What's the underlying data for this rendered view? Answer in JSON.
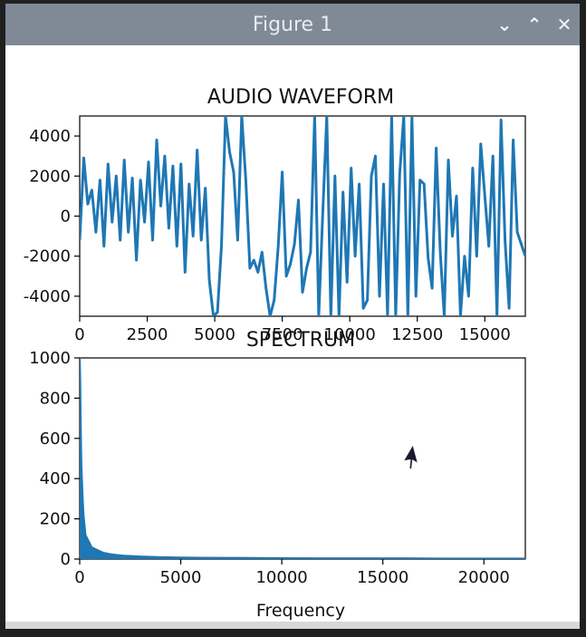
{
  "window": {
    "title": "Figure 1",
    "buttons": {
      "minimize": "⌄",
      "maximize": "⌃",
      "close": "✕"
    }
  },
  "chart_data": [
    {
      "type": "line",
      "title": "AUDIO WAVEFORM",
      "xlabel": "",
      "ylabel": "",
      "xlim": [
        0,
        16500
      ],
      "ylim": [
        -5000,
        5000
      ],
      "xticks": [
        "0",
        "2500",
        "5000",
        "7500",
        "10000",
        "12500",
        "15000"
      ],
      "yticks": [
        "4000",
        "2000",
        "0",
        "-2000",
        "-4000"
      ],
      "color": "#1f77b4",
      "x": [
        0,
        150,
        300,
        450,
        600,
        750,
        900,
        1050,
        1200,
        1350,
        1500,
        1650,
        1800,
        1950,
        2100,
        2250,
        2400,
        2550,
        2700,
        2850,
        3000,
        3150,
        3300,
        3450,
        3600,
        3750,
        3900,
        4050,
        4200,
        4350,
        4500,
        4650,
        4800,
        4950,
        5100,
        5250,
        5400,
        5550,
        5700,
        5850,
        6000,
        6150,
        6300,
        6450,
        6600,
        6750,
        6900,
        7050,
        7200,
        7350,
        7500,
        7650,
        7800,
        7950,
        8100,
        8250,
        8400,
        8550,
        8700,
        8850,
        9000,
        9150,
        9300,
        9450,
        9600,
        9750,
        9900,
        10050,
        10200,
        10350,
        10500,
        10650,
        10800,
        10950,
        11100,
        11250,
        11400,
        11550,
        11700,
        11850,
        12000,
        12150,
        12300,
        12450,
        12600,
        12750,
        12900,
        13050,
        13200,
        13350,
        13500,
        13650,
        13800,
        13950,
        14100,
        14250,
        14400,
        14550,
        14700,
        14850,
        15000,
        15150,
        15300,
        15450,
        15600,
        15750,
        15900,
        16050,
        16200,
        16350,
        16500
      ],
      "y": [
        -1200,
        2900,
        600,
        1300,
        -800,
        1800,
        -1500,
        2600,
        -300,
        2000,
        -1200,
        2800,
        -800,
        1900,
        -2200,
        1800,
        -300,
        2700,
        -1200,
        3800,
        500,
        3000,
        -600,
        2500,
        -1500,
        2600,
        -2800,
        1600,
        -1000,
        3300,
        -1200,
        1400,
        -3200,
        -5000,
        -4800,
        -1500,
        5000,
        3200,
        2200,
        -1200,
        5000,
        1800,
        -2600,
        -2200,
        -2800,
        -1800,
        -3600,
        -5000,
        -4200,
        -1500,
        2200,
        -3000,
        -2400,
        -1400,
        800,
        -3800,
        -2600,
        -1800,
        5000,
        -5000,
        200,
        5000,
        -5000,
        2000,
        -5000,
        1200,
        -3300,
        2400,
        -2000,
        1600,
        -4600,
        -4200,
        2000,
        3000,
        -4000,
        1600,
        -5000,
        5000,
        -5000,
        2100,
        5000,
        -5000,
        5000,
        -4000,
        1800,
        1600,
        -2100,
        -3600,
        3400,
        -1800,
        -5000,
        2800,
        -1000,
        1000,
        -5000,
        -2000,
        -4000,
        2400,
        -2000,
        3600,
        1000,
        -1500,
        3000,
        -5000,
        4800,
        -1200,
        -4600,
        3800,
        -800,
        -1400,
        -2000
      ],
      "grid": false
    },
    {
      "type": "area",
      "title": "SPECTRUM",
      "xlabel": "Frequency",
      "ylabel": "",
      "xlim": [
        0,
        22050
      ],
      "ylim": [
        0,
        1000
      ],
      "xticks": [
        "0",
        "5000",
        "10000",
        "15000",
        "20000"
      ],
      "yticks": [
        "1000",
        "800",
        "600",
        "400",
        "200",
        "0"
      ],
      "color": "#1f77b4",
      "x": [
        0,
        20,
        40,
        60,
        80,
        100,
        130,
        160,
        200,
        250,
        300,
        350,
        400,
        500,
        600,
        700,
        800,
        1000,
        1200,
        1500,
        1800,
        2200,
        2600,
        3000,
        4000,
        5000,
        6000,
        8000,
        10000,
        12000,
        14000,
        16000,
        18000,
        20000,
        22050
      ],
      "y": [
        960,
        1000,
        880,
        720,
        560,
        460,
        380,
        300,
        220,
        170,
        120,
        110,
        100,
        80,
        60,
        55,
        50,
        40,
        32,
        26,
        22,
        18,
        16,
        14,
        11,
        9,
        8,
        7,
        6,
        5,
        5,
        5,
        4,
        4,
        4
      ],
      "grid": false
    }
  ]
}
